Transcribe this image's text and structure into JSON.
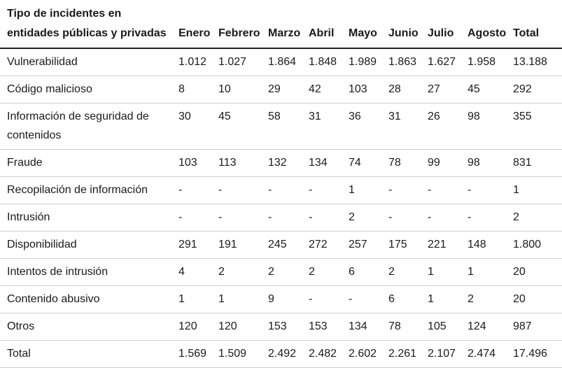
{
  "table": {
    "headers": [
      "Tipo de incidentes en entidades públicas y privadas",
      "Enero",
      "Febrero",
      "Marzo",
      "Abril",
      "Mayo",
      "Junio",
      "Julio",
      "Agosto",
      "Total"
    ],
    "rows": [
      [
        "Vulnerabilidad",
        "1.012",
        "1.027",
        "1.864",
        "1.848",
        "1.989",
        "1.863",
        "1.627",
        "1.958",
        "13.188"
      ],
      [
        "Código malicioso",
        "8",
        "10",
        "29",
        "42",
        "103",
        "28",
        "27",
        "45",
        "292"
      ],
      [
        "Información de seguridad de contenidos",
        "30",
        "45",
        "58",
        "31",
        "36",
        "31",
        "26",
        "98",
        "355"
      ],
      [
        "Fraude",
        "103",
        "113",
        "132",
        "134",
        "74",
        "78",
        "99",
        "98",
        "831"
      ],
      [
        "Recopilación de información",
        "-",
        "-",
        "-",
        "-",
        "1",
        "-",
        "-",
        "-",
        "1"
      ],
      [
        "Intrusión",
        "-",
        "-",
        "-",
        "-",
        "2",
        "-",
        "-",
        "-",
        "2"
      ],
      [
        "Disponibilidad",
        "291",
        "191",
        "245",
        "272",
        "257",
        "175",
        "221",
        "148",
        "1.800"
      ],
      [
        "Intentos de intrusión",
        "4",
        "2",
        "2",
        "2",
        "6",
        "2",
        "1",
        "1",
        "20"
      ],
      [
        "Contenido abusivo",
        "1",
        "1",
        "9",
        "-",
        "-",
        "6",
        "1",
        "2",
        "20"
      ],
      [
        "Otros",
        "120",
        "120",
        "153",
        "153",
        "134",
        "78",
        "105",
        "124",
        "987"
      ],
      [
        "Total",
        "1.569",
        "1.509",
        "2.492",
        "2.482",
        "2.602",
        "2.261",
        "2.107",
        "2.474",
        "17.496"
      ]
    ]
  }
}
